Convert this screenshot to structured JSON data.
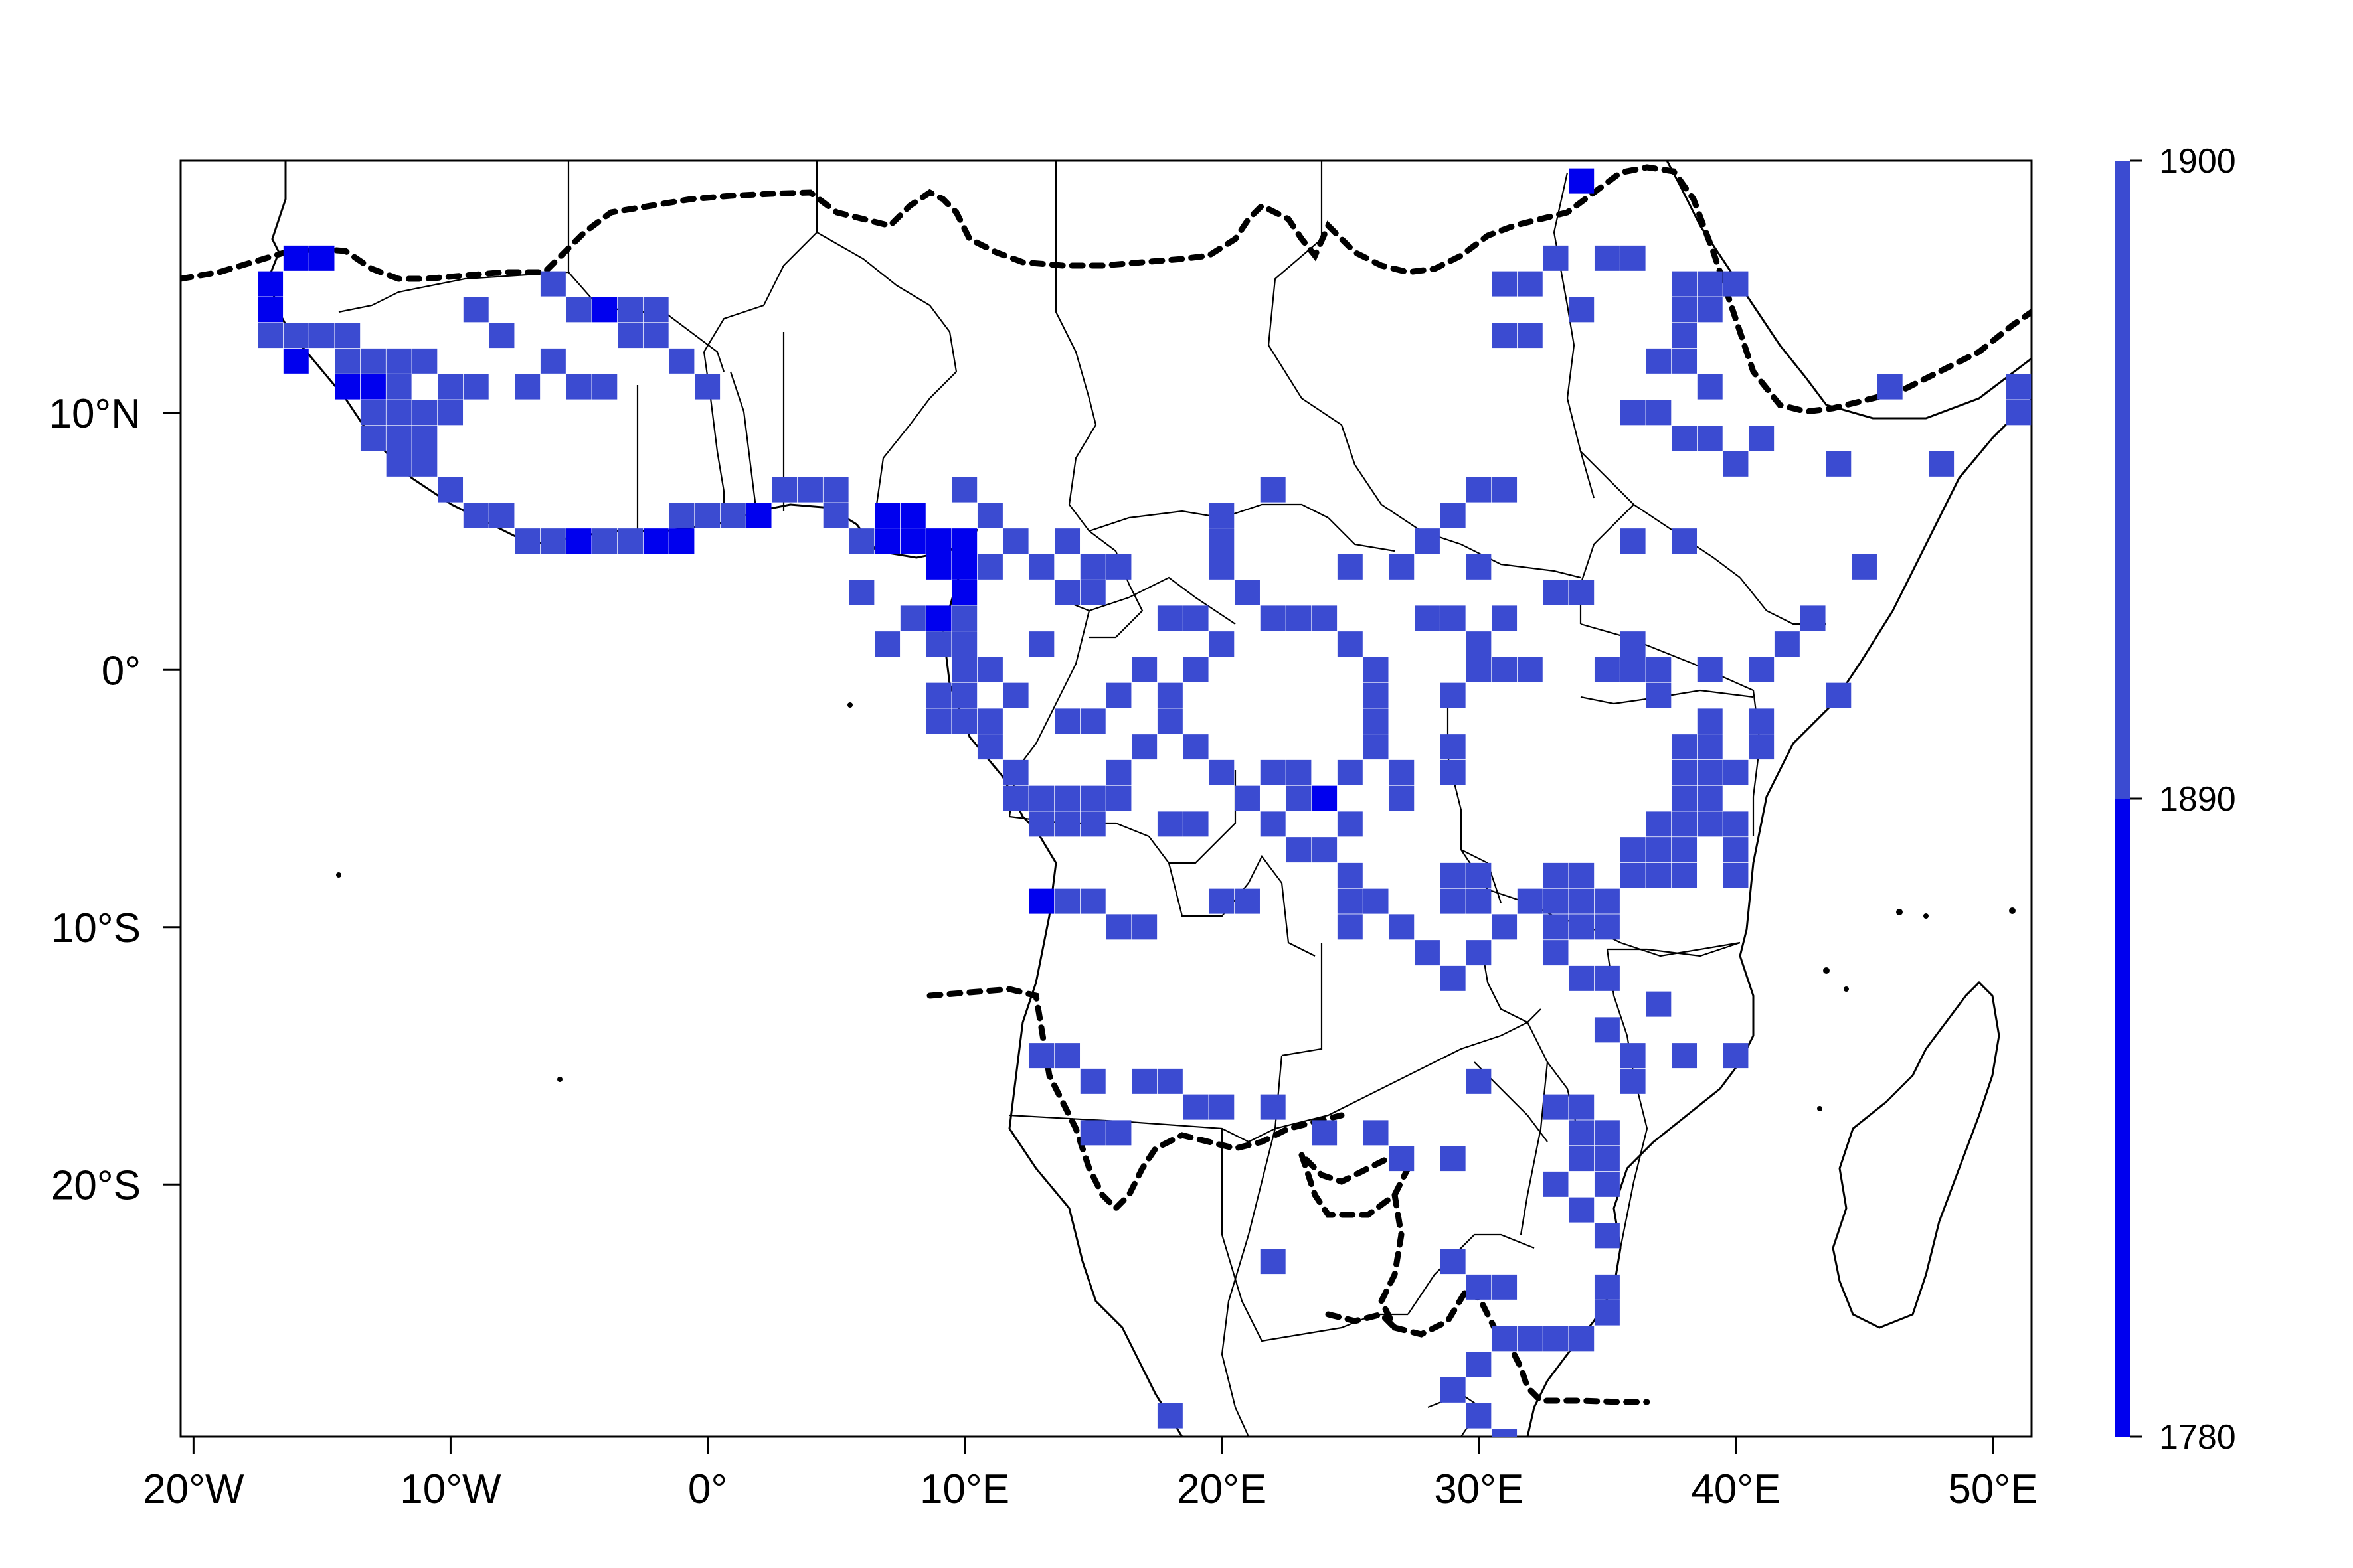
{
  "chart_data": {
    "type": "heatmap",
    "description_visible": "",
    "x_axis": {
      "ticks": [
        -20,
        -10,
        0,
        10,
        20,
        30,
        40,
        50
      ],
      "tick_labels": [
        "20°W",
        "10°W",
        "0°",
        "10°E",
        "20°E",
        "30°E",
        "40°E",
        "50°E"
      ],
      "lim": [
        -20.5,
        51.5
      ]
    },
    "y_axis": {
      "ticks": [
        10,
        0,
        -10,
        -20
      ],
      "tick_labels": [
        "10°N",
        "0°",
        "10°S",
        "20°S"
      ],
      "lim": [
        -29.8,
        19.8
      ]
    },
    "legend": {
      "placement": "right",
      "ticks": [
        1900,
        1890,
        1780
      ],
      "tick_labels": [
        "1900",
        "1890",
        "1780"
      ],
      "bands": [
        {
          "from": 1780,
          "to": 1890,
          "color": "#0000ee"
        },
        {
          "from": 1890,
          "to": 1900,
          "color": "#3b4bd1"
        }
      ]
    },
    "colors": {
      "early": "#0000ee",
      "late": "#3b4bd1",
      "border": "#000000"
    },
    "cells": [
      [
        -17,
        15,
        0
      ],
      [
        -16,
        16,
        0
      ],
      [
        -15,
        16,
        0
      ],
      [
        -17,
        14,
        0
      ],
      [
        -17,
        13,
        1
      ],
      [
        -16,
        13,
        1
      ],
      [
        -15,
        13,
        1
      ],
      [
        -14,
        13,
        1
      ],
      [
        -16,
        12,
        0
      ],
      [
        -14,
        12,
        1
      ],
      [
        -13,
        12,
        1
      ],
      [
        -12,
        12,
        1
      ],
      [
        -11,
        12,
        1
      ],
      [
        -14,
        11,
        0
      ],
      [
        -13,
        11,
        0
      ],
      [
        -12,
        11,
        1
      ],
      [
        -10,
        11,
        1
      ],
      [
        -9,
        11,
        1
      ],
      [
        -13,
        10,
        1
      ],
      [
        -12,
        10,
        1
      ],
      [
        -11,
        10,
        1
      ],
      [
        -10,
        10,
        1
      ],
      [
        -13,
        9,
        1
      ],
      [
        -12,
        9,
        1
      ],
      [
        -11,
        9,
        1
      ],
      [
        -12,
        8,
        1
      ],
      [
        -11,
        8,
        1
      ],
      [
        -10,
        7,
        1
      ],
      [
        -9,
        6,
        1
      ],
      [
        -8,
        6,
        1
      ],
      [
        -7,
        5,
        1
      ],
      [
        -6,
        5,
        1
      ],
      [
        -5,
        5,
        0
      ],
      [
        -4,
        5,
        1
      ],
      [
        -3,
        5,
        1
      ],
      [
        -2,
        5,
        0
      ],
      [
        -1,
        5,
        0
      ],
      [
        -7,
        11,
        1
      ],
      [
        -6,
        12,
        1
      ],
      [
        -5,
        11,
        1
      ],
      [
        -4,
        11,
        1
      ],
      [
        -3,
        13,
        1
      ],
      [
        -2,
        13,
        1
      ],
      [
        -1,
        12,
        1
      ],
      [
        0,
        11,
        1
      ],
      [
        -4,
        14,
        0
      ],
      [
        -3,
        14,
        1
      ],
      [
        -2,
        14,
        1
      ],
      [
        -5,
        14,
        1
      ],
      [
        -9,
        14,
        1
      ],
      [
        -8,
        13,
        1
      ],
      [
        -6,
        15,
        1
      ],
      [
        -1,
        6,
        1
      ],
      [
        0,
        6,
        1
      ],
      [
        1,
        6,
        1
      ],
      [
        2,
        6,
        0
      ],
      [
        3,
        7,
        1
      ],
      [
        4,
        7,
        1
      ],
      [
        5,
        6,
        1
      ],
      [
        6,
        5,
        1
      ],
      [
        7,
        5,
        0
      ],
      [
        8,
        5,
        0
      ],
      [
        9,
        5,
        0
      ],
      [
        10,
        5,
        0
      ],
      [
        9,
        4,
        0
      ],
      [
        10,
        4,
        0
      ],
      [
        11,
        4,
        1
      ],
      [
        10,
        3,
        0
      ],
      [
        9,
        2,
        0
      ],
      [
        10,
        2,
        1
      ],
      [
        9,
        1,
        1
      ],
      [
        10,
        1,
        1
      ],
      [
        10,
        0,
        1
      ],
      [
        11,
        0,
        1
      ],
      [
        9,
        -1,
        1
      ],
      [
        10,
        -1,
        1
      ],
      [
        9,
        -2,
        1
      ],
      [
        10,
        -2,
        1
      ],
      [
        11,
        -3,
        1
      ],
      [
        12,
        -4,
        1
      ],
      [
        12,
        -5,
        1
      ],
      [
        13,
        -5,
        1
      ],
      [
        14,
        -5,
        1
      ],
      [
        15,
        -5,
        1
      ],
      [
        16,
        -5,
        1
      ],
      [
        13,
        -6,
        1
      ],
      [
        14,
        -6,
        1
      ],
      [
        15,
        -6,
        1
      ],
      [
        16,
        -4,
        1
      ],
      [
        17,
        -3,
        1
      ],
      [
        18,
        -2,
        1
      ],
      [
        18,
        -1,
        1
      ],
      [
        19,
        0,
        1
      ],
      [
        20,
        1,
        1
      ],
      [
        19,
        2,
        1
      ],
      [
        18,
        2,
        1
      ],
      [
        20,
        4,
        1
      ],
      [
        20,
        5,
        1
      ],
      [
        21,
        3,
        1
      ],
      [
        22,
        2,
        1
      ],
      [
        23,
        2,
        1
      ],
      [
        24,
        2,
        1
      ],
      [
        25,
        1,
        1
      ],
      [
        26,
        0,
        1
      ],
      [
        26,
        -1,
        1
      ],
      [
        26,
        -2,
        1
      ],
      [
        26,
        -3,
        1
      ],
      [
        27,
        -4,
        1
      ],
      [
        27,
        -5,
        1
      ],
      [
        22,
        -4,
        1
      ],
      [
        23,
        -4,
        1
      ],
      [
        23,
        -5,
        1
      ],
      [
        25,
        -6,
        1
      ],
      [
        24,
        -7,
        1
      ],
      [
        25,
        -8,
        1
      ],
      [
        25,
        -9,
        1
      ],
      [
        26,
        -9,
        1
      ],
      [
        27,
        -10,
        1
      ],
      [
        29,
        -8,
        1
      ],
      [
        30,
        -8,
        1
      ],
      [
        29,
        -9,
        1
      ],
      [
        30,
        -9,
        1
      ],
      [
        29,
        -4,
        1
      ],
      [
        29,
        -3,
        1
      ],
      [
        29,
        -1,
        1
      ],
      [
        30,
        0,
        1
      ],
      [
        30,
        1,
        1
      ],
      [
        31,
        2,
        1
      ],
      [
        33,
        -8,
        1
      ],
      [
        34,
        -8,
        1
      ],
      [
        33,
        -9,
        1
      ],
      [
        34,
        -9,
        1
      ],
      [
        35,
        -9,
        1
      ],
      [
        36,
        -7,
        1
      ],
      [
        37,
        -7,
        1
      ],
      [
        36,
        -8,
        1
      ],
      [
        37,
        -8,
        1
      ],
      [
        38,
        -8,
        1
      ],
      [
        38,
        -3,
        1
      ],
      [
        39,
        -3,
        1
      ],
      [
        38,
        -4,
        1
      ],
      [
        39,
        -4,
        1
      ],
      [
        39,
        -5,
        1
      ],
      [
        38,
        -5,
        1
      ],
      [
        38,
        -6,
        1
      ],
      [
        39,
        -6,
        1
      ],
      [
        40,
        -6,
        1
      ],
      [
        40,
        -7,
        1
      ],
      [
        37,
        0,
        1
      ],
      [
        36,
        0,
        1
      ],
      [
        35,
        0,
        1
      ],
      [
        39,
        0,
        1
      ],
      [
        41,
        0,
        1
      ],
      [
        42,
        1,
        1
      ],
      [
        43,
        2,
        1
      ],
      [
        45,
        4,
        1
      ],
      [
        44,
        -1,
        1
      ],
      [
        41,
        -2,
        1
      ],
      [
        38,
        15,
        1
      ],
      [
        39,
        15,
        1
      ],
      [
        40,
        15,
        1
      ],
      [
        38,
        14,
        1
      ],
      [
        39,
        14,
        1
      ],
      [
        38,
        13,
        1
      ],
      [
        37,
        12,
        1
      ],
      [
        38,
        12,
        1
      ],
      [
        39,
        11,
        1
      ],
      [
        36,
        10,
        1
      ],
      [
        37,
        10,
        1
      ],
      [
        38,
        9,
        1
      ],
      [
        39,
        9,
        1
      ],
      [
        40,
        8,
        1
      ],
      [
        41,
        9,
        1
      ],
      [
        36,
        5,
        1
      ],
      [
        38,
        5,
        1
      ],
      [
        44,
        8,
        1
      ],
      [
        48,
        8,
        1
      ],
      [
        46,
        11,
        1
      ],
      [
        51,
        11,
        1
      ],
      [
        51,
        10,
        1
      ],
      [
        35,
        16,
        1
      ],
      [
        33,
        16,
        1
      ],
      [
        34,
        14,
        1
      ],
      [
        32,
        13,
        1
      ],
      [
        31,
        13,
        1
      ],
      [
        31,
        15,
        1
      ],
      [
        32,
        15,
        1
      ],
      [
        34,
        19,
        0
      ],
      [
        36,
        16,
        1
      ],
      [
        27,
        4,
        1
      ],
      [
        28,
        5,
        1
      ],
      [
        29,
        6,
        1
      ],
      [
        30,
        7,
        1
      ],
      [
        31,
        7,
        1
      ],
      [
        30,
        4,
        1
      ],
      [
        28,
        2,
        1
      ],
      [
        29,
        2,
        1
      ],
      [
        25,
        4,
        1
      ],
      [
        22,
        7,
        1
      ],
      [
        20,
        6,
        1
      ],
      [
        16,
        4,
        1
      ],
      [
        15,
        3,
        1
      ],
      [
        14,
        3,
        1
      ],
      [
        13,
        4,
        1
      ],
      [
        13,
        1,
        1
      ],
      [
        12,
        -1,
        1
      ],
      [
        11,
        -2,
        1
      ],
      [
        14,
        -2,
        1
      ],
      [
        15,
        -2,
        1
      ],
      [
        16,
        -1,
        1
      ],
      [
        17,
        0,
        1
      ],
      [
        13,
        -9,
        0
      ],
      [
        14,
        -9,
        1
      ],
      [
        15,
        -9,
        1
      ],
      [
        16,
        -10,
        1
      ],
      [
        17,
        -10,
        1
      ],
      [
        13,
        -15,
        1
      ],
      [
        14,
        -15,
        1
      ],
      [
        15,
        -16,
        1
      ],
      [
        17,
        -16,
        1
      ],
      [
        18,
        -16,
        1
      ],
      [
        19,
        -17,
        1
      ],
      [
        20,
        -17,
        1
      ],
      [
        15,
        -18,
        1
      ],
      [
        16,
        -18,
        1
      ],
      [
        22,
        -17,
        1
      ],
      [
        24,
        -18,
        1
      ],
      [
        26,
        -18,
        1
      ],
      [
        27,
        -19,
        1
      ],
      [
        29,
        -19,
        1
      ],
      [
        30,
        -16,
        1
      ],
      [
        33,
        -17,
        1
      ],
      [
        34,
        -17,
        1
      ],
      [
        34,
        -18,
        1
      ],
      [
        35,
        -18,
        1
      ],
      [
        34,
        -19,
        1
      ],
      [
        35,
        -19,
        1
      ],
      [
        35,
        -20,
        1
      ],
      [
        36,
        -15,
        1
      ],
      [
        36,
        -16,
        1
      ],
      [
        34,
        -12,
        1
      ],
      [
        35,
        -12,
        1
      ],
      [
        35,
        -14,
        1
      ],
      [
        37,
        -13,
        1
      ],
      [
        38,
        -15,
        1
      ],
      [
        40,
        -15,
        1
      ],
      [
        33,
        -20,
        1
      ],
      [
        34,
        -21,
        1
      ],
      [
        35,
        -22,
        1
      ],
      [
        35,
        -24,
        1
      ],
      [
        35,
        -25,
        1
      ],
      [
        29,
        -23,
        1
      ],
      [
        30,
        -24,
        1
      ],
      [
        31,
        -24,
        1
      ],
      [
        31,
        -26,
        1
      ],
      [
        32,
        -26,
        1
      ],
      [
        30,
        -27,
        1
      ],
      [
        29,
        -28,
        1
      ],
      [
        30,
        -29,
        1
      ],
      [
        31,
        -30,
        1
      ],
      [
        18,
        -29,
        1
      ],
      [
        22,
        -23,
        1
      ],
      [
        33,
        -26,
        1
      ],
      [
        34,
        -26,
        1
      ],
      [
        7,
        1,
        1
      ],
      [
        8,
        2,
        1
      ],
      [
        6,
        3,
        1
      ],
      [
        7,
        6,
        0
      ],
      [
        8,
        6,
        0
      ],
      [
        5,
        7,
        1
      ],
      [
        10,
        7,
        1
      ],
      [
        11,
        6,
        1
      ],
      [
        12,
        5,
        1
      ],
      [
        14,
        5,
        1
      ],
      [
        15,
        4,
        1
      ],
      [
        24,
        -5,
        0
      ],
      [
        25,
        -4,
        1
      ],
      [
        23,
        -7,
        1
      ],
      [
        22,
        -6,
        1
      ],
      [
        19,
        -3,
        1
      ],
      [
        20,
        -4,
        1
      ],
      [
        21,
        -5,
        1
      ],
      [
        18,
        -6,
        1
      ],
      [
        19,
        -6,
        1
      ],
      [
        20,
        -9,
        1
      ],
      [
        21,
        -9,
        1
      ],
      [
        25,
        -10,
        1
      ],
      [
        28,
        -11,
        1
      ],
      [
        29,
        -12,
        1
      ],
      [
        30,
        -11,
        1
      ],
      [
        31,
        -10,
        1
      ],
      [
        32,
        -9,
        1
      ],
      [
        33,
        -10,
        1
      ],
      [
        33,
        -11,
        1
      ],
      [
        34,
        -10,
        1
      ],
      [
        35,
        -10,
        1
      ],
      [
        37,
        -6,
        1
      ],
      [
        38,
        -7,
        1
      ],
      [
        40,
        -8,
        1
      ],
      [
        40,
        -4,
        1
      ],
      [
        41,
        -3,
        1
      ],
      [
        39,
        -2,
        1
      ],
      [
        37,
        -1,
        1
      ],
      [
        36,
        1,
        1
      ],
      [
        33,
        3,
        1
      ],
      [
        34,
        3,
        1
      ],
      [
        32,
        0,
        1
      ],
      [
        31,
        0,
        1
      ]
    ]
  }
}
